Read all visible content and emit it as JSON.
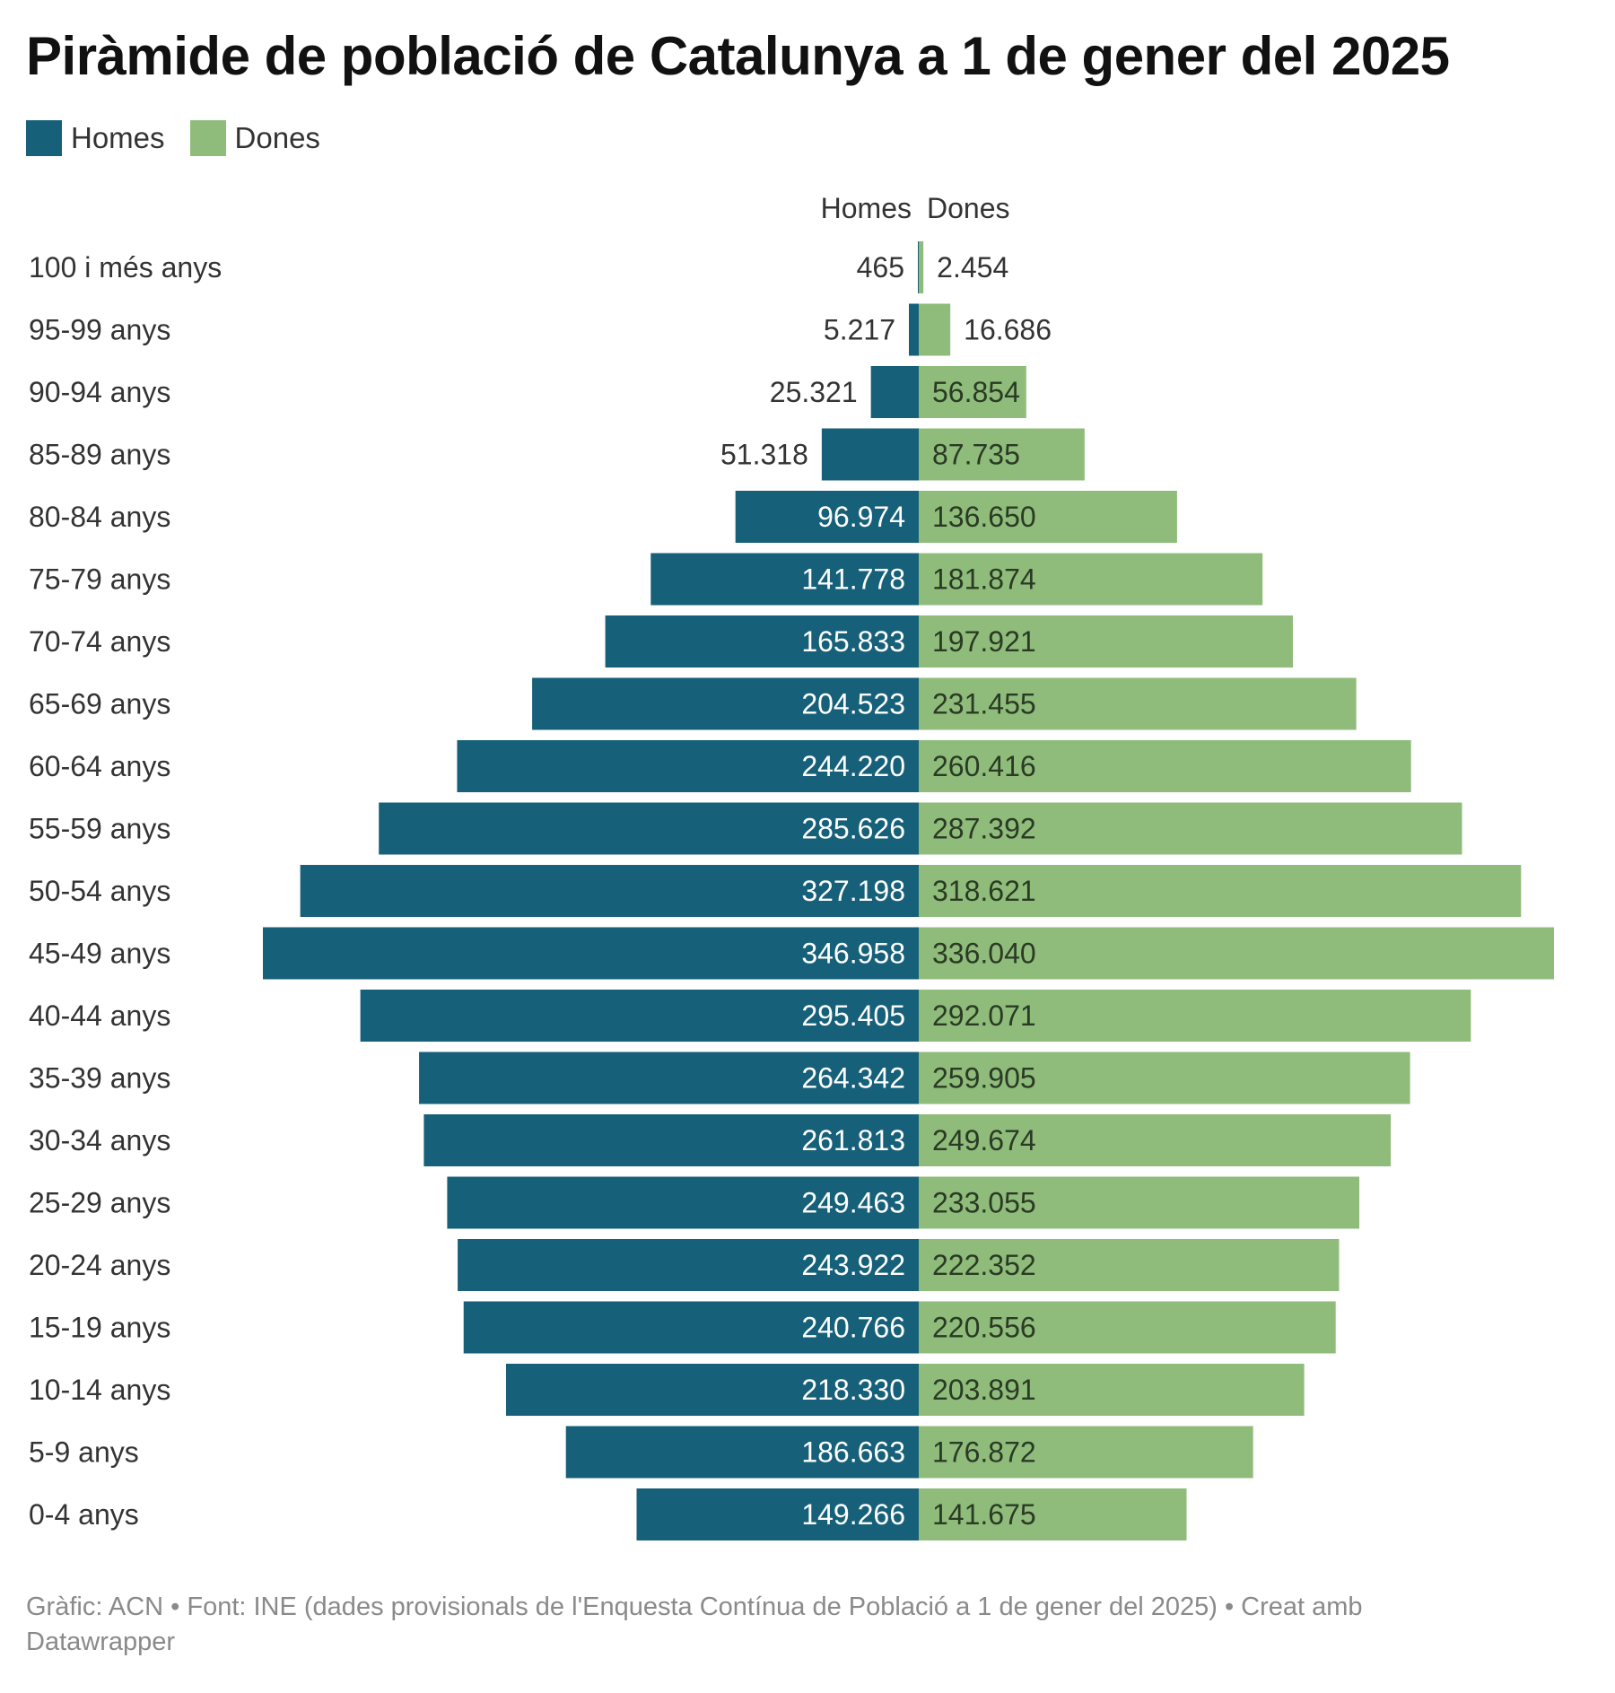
{
  "title": "Piràmide de població de Catalunya a 1 de gener del 2025",
  "legend": [
    {
      "label": "Homes",
      "color": "#17607a"
    },
    {
      "label": "Dones",
      "color": "#8fbc7b"
    }
  ],
  "column_headers": {
    "left": "Homes",
    "right": "Dones"
  },
  "footer": "Gràfic: ACN • Font: INE (dades provisionals de l'Enquesta Contínua de Població a 1 de gener del 2025) • Creat amb Datawrapper",
  "chart_data": {
    "type": "bar",
    "subtype": "population-pyramid",
    "title": "Piràmide de població de Catalunya a 1 de gener del 2025",
    "xlabel": "",
    "ylabel": "",
    "legend_position": "top-left",
    "grid": false,
    "categories": [
      "100 i més anys",
      "95-99 anys",
      "90-94 anys",
      "85-89 anys",
      "80-84 anys",
      "75-79 anys",
      "70-74 anys",
      "65-69 anys",
      "60-64 anys",
      "55-59 anys",
      "50-54 anys",
      "45-49 anys",
      "40-44 anys",
      "35-39 anys",
      "30-34 anys",
      "25-29 anys",
      "20-24 anys",
      "15-19 anys",
      "10-14 anys",
      "5-9 anys",
      "0-4 anys"
    ],
    "series": [
      {
        "name": "Homes",
        "color": "#17607a",
        "values": [
          465,
          5217,
          25321,
          51318,
          96974,
          141778,
          165833,
          204523,
          244220,
          285626,
          327198,
          346958,
          295405,
          264342,
          261813,
          249463,
          243922,
          240766,
          218330,
          186663,
          149266
        ],
        "labels": [
          "465",
          "5.217",
          "25.321",
          "51.318",
          "96.974",
          "141.778",
          "165.833",
          "204.523",
          "244.220",
          "285.626",
          "327.198",
          "346.958",
          "295.405",
          "264.342",
          "261.813",
          "249.463",
          "243.922",
          "240.766",
          "218.330",
          "186.663",
          "149.266"
        ]
      },
      {
        "name": "Dones",
        "color": "#8fbc7b",
        "values": [
          2454,
          16686,
          56854,
          87735,
          136650,
          181874,
          197921,
          231455,
          260416,
          287392,
          318621,
          336040,
          292071,
          259905,
          249674,
          233055,
          222352,
          220556,
          203891,
          176872,
          141675
        ],
        "labels": [
          "2.454",
          "16.686",
          "56.854",
          "87.735",
          "136.650",
          "181.874",
          "197.921",
          "231.455",
          "260.416",
          "287.392",
          "318.621",
          "336.040",
          "292.071",
          "259.905",
          "249.674",
          "233.055",
          "222.352",
          "220.556",
          "203.891",
          "176.872",
          "141.675"
        ]
      }
    ],
    "xlim": [
      0,
      346958
    ]
  }
}
